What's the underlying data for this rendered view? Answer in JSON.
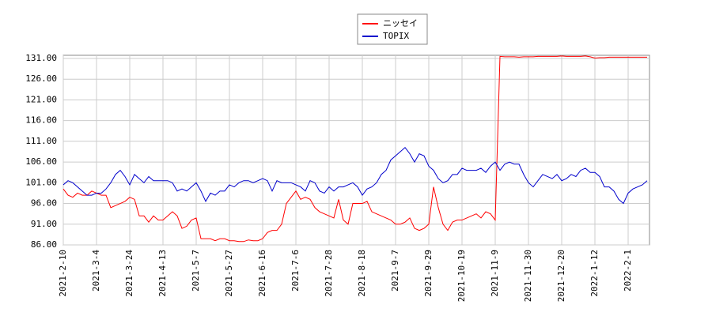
{
  "chart_data": {
    "type": "line",
    "categories": [
      "2021-2-10",
      null,
      null,
      null,
      null,
      null,
      null,
      "2021-3-4",
      null,
      null,
      null,
      null,
      null,
      null,
      "2021-3-24",
      null,
      null,
      null,
      null,
      null,
      null,
      "2021-4-13",
      null,
      null,
      null,
      null,
      null,
      null,
      "2021-5-7",
      null,
      null,
      null,
      null,
      null,
      null,
      "2021-5-27",
      null,
      null,
      null,
      null,
      null,
      null,
      "2021-6-16",
      null,
      null,
      null,
      null,
      null,
      null,
      "2021-7-6",
      null,
      null,
      null,
      null,
      null,
      null,
      "2021-7-28",
      null,
      null,
      null,
      null,
      null,
      null,
      "2021-8-18",
      null,
      null,
      null,
      null,
      null,
      null,
      "2021-9-7",
      null,
      null,
      null,
      null,
      null,
      null,
      "2021-9-29",
      null,
      null,
      null,
      null,
      null,
      null,
      "2021-10-19",
      null,
      null,
      null,
      null,
      null,
      null,
      "2021-11-9",
      null,
      null,
      null,
      null,
      null,
      null,
      "2021-11-30",
      null,
      null,
      null,
      null,
      null,
      null,
      "2021-12-20",
      null,
      null,
      null,
      null,
      null,
      null,
      "2022-1-12",
      null,
      null,
      null,
      null,
      null,
      null,
      "2022-2-1",
      null,
      null,
      null,
      null
    ],
    "series": [
      {
        "name": "ニッセイ",
        "color": "#ff0000",
        "values": [
          99.5,
          98,
          97.5,
          98.5,
          98,
          98,
          99,
          98.5,
          98,
          98,
          95,
          95.5,
          96,
          96.5,
          97.5,
          97,
          93,
          93,
          91.5,
          93,
          92,
          92,
          93,
          94,
          93,
          90,
          90.5,
          92,
          92.5,
          87.5,
          87.5,
          87.5,
          87,
          87.5,
          87.5,
          87,
          87,
          86.8,
          86.8,
          87.2,
          87,
          87,
          87.5,
          89,
          89.5,
          89.5,
          91,
          96,
          97.5,
          99,
          97,
          97.5,
          97,
          95,
          94,
          93.5,
          93,
          92.5,
          97,
          92,
          91,
          96,
          96,
          96,
          96.5,
          94,
          93.5,
          93,
          92.5,
          92,
          91,
          91,
          91.5,
          92.5,
          90,
          89.5,
          90,
          91,
          100,
          95,
          91,
          89.5,
          91.5,
          92,
          92,
          92.5,
          93,
          93.5,
          92.5,
          94,
          93.5,
          92,
          131.5,
          131.4,
          131.4,
          131.4,
          131.3,
          131.4,
          131.4,
          131.4,
          131.5,
          131.5,
          131.5,
          131.5,
          131.5,
          131.6,
          131.5,
          131.5,
          131.5,
          131.5,
          131.6,
          131.4,
          131.1,
          131.2,
          131.2,
          131.3,
          131.3,
          131.3,
          131.3,
          131.3,
          131.3,
          131.3,
          131.3,
          131.3
        ]
      },
      {
        "name": "TOPIX",
        "color": "#0000cc",
        "values": [
          100.5,
          101.5,
          101,
          100,
          99,
          98,
          98,
          98.5,
          98.5,
          99.5,
          101,
          103,
          104,
          102.5,
          100.5,
          103,
          102,
          101,
          102.5,
          101.5,
          101.5,
          101.5,
          101.5,
          101,
          99,
          99.5,
          99,
          100,
          101,
          99,
          96.5,
          98.5,
          98,
          99,
          99,
          100.5,
          100,
          101,
          101.5,
          101.5,
          101,
          101.5,
          102,
          101.5,
          99,
          101.5,
          101,
          101,
          101,
          100.5,
          100,
          99,
          101.5,
          101,
          99,
          98.5,
          100,
          99,
          100,
          100,
          100.5,
          101,
          100,
          98,
          99.5,
          100,
          101,
          103,
          104,
          106.5,
          107.5,
          108.5,
          109.5,
          108,
          106,
          108,
          107.5,
          105,
          104,
          102,
          101,
          101.5,
          103,
          103,
          104.5,
          104,
          104,
          104,
          104.5,
          103.5,
          105,
          106,
          104,
          105.5,
          106,
          105.5,
          105.5,
          103,
          101,
          100,
          101.5,
          103,
          102.5,
          102,
          103,
          101.5,
          102,
          103,
          102.5,
          104,
          104.5,
          103.5,
          103.5,
          102.5,
          100,
          100,
          99,
          97,
          96,
          98.5,
          99.5,
          100,
          100.5,
          101.5
        ]
      }
    ],
    "ylim": [
      86,
      131
    ],
    "yticks": [
      {
        "value": 86,
        "label": "86.00"
      },
      {
        "value": 91,
        "label": "91.00"
      },
      {
        "value": 96,
        "label": "96.00"
      },
      {
        "value": 101,
        "label": "101.00"
      },
      {
        "value": 106,
        "label": "106.00"
      },
      {
        "value": 111,
        "label": "111.00"
      },
      {
        "value": 116,
        "label": "116.00"
      },
      {
        "value": 121,
        "label": "121.00"
      },
      {
        "value": 126,
        "label": "126.00"
      },
      {
        "value": 131,
        "label": "131.00"
      }
    ],
    "grid": true,
    "legend": "upper center"
  }
}
